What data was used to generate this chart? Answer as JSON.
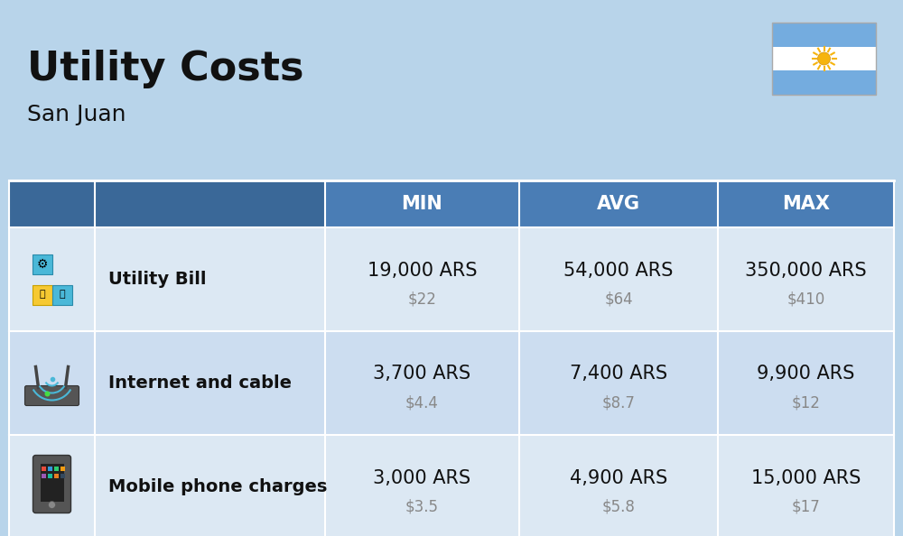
{
  "title": "Utility Costs",
  "subtitle": "San Juan",
  "background_color": "#b8d4ea",
  "header_bg_color": "#4a7db5",
  "header_text_color": "#ffffff",
  "row_bg_colors": [
    "#dce8f3",
    "#ccddf0"
  ],
  "col_headers": [
    "MIN",
    "AVG",
    "MAX"
  ],
  "rows": [
    {
      "label": "Utility Bill",
      "ars_values": [
        "19,000 ARS",
        "54,000 ARS",
        "350,000 ARS"
      ],
      "usd_values": [
        "$22",
        "$64",
        "$410"
      ]
    },
    {
      "label": "Internet and cable",
      "ars_values": [
        "3,700 ARS",
        "7,400 ARS",
        "9,900 ARS"
      ],
      "usd_values": [
        "$4.4",
        "$8.7",
        "$12"
      ]
    },
    {
      "label": "Mobile phone charges",
      "ars_values": [
        "3,000 ARS",
        "4,900 ARS",
        "15,000 ARS"
      ],
      "usd_values": [
        "$3.5",
        "$5.8",
        "$17"
      ]
    }
  ],
  "flag_stripe_blue": "#74acdf",
  "flag_sun_color": "#f6b40e",
  "title_fontsize": 32,
  "subtitle_fontsize": 18,
  "header_fontsize": 15,
  "label_fontsize": 14,
  "ars_fontsize": 15,
  "usd_fontsize": 12,
  "usd_color": "#888888",
  "text_color": "#111111"
}
